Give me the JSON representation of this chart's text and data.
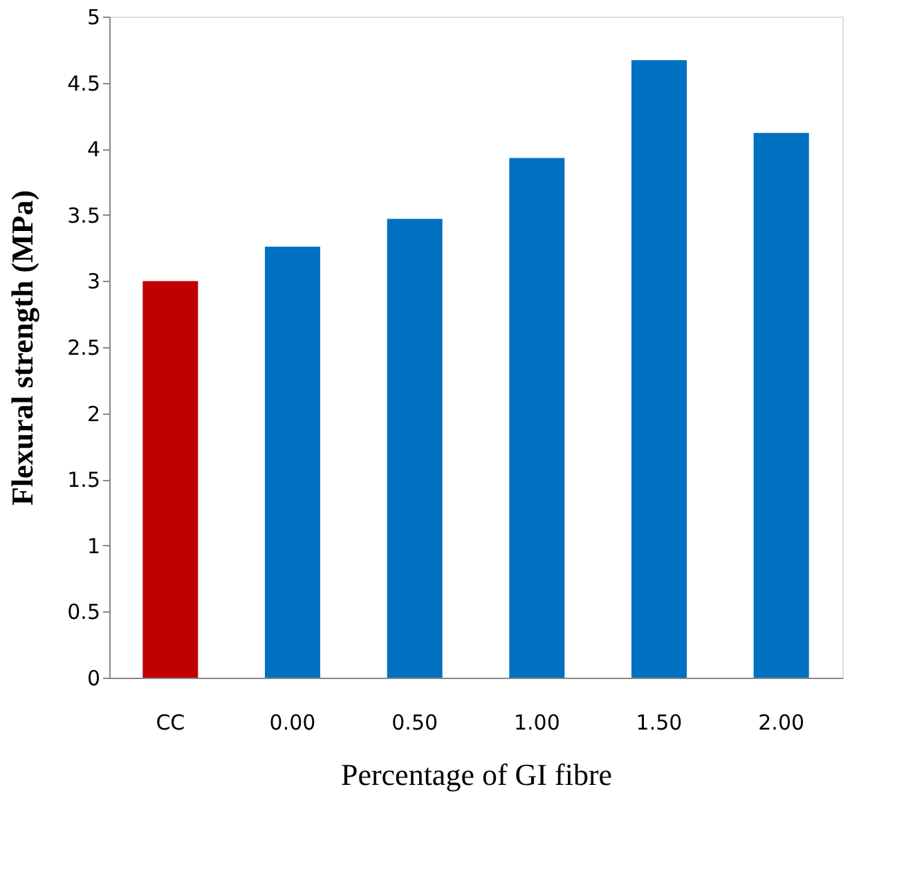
{
  "chart_data": {
    "type": "bar",
    "xlabel": "Percentage of GI fibre",
    "ylabel": "Flexural strength (MPa)",
    "categories": [
      "CC",
      "0.00",
      "0.50",
      "1.00",
      "1.50",
      "2.00"
    ],
    "values": [
      3.0,
      3.26,
      3.47,
      3.93,
      4.67,
      4.12
    ],
    "colors": [
      "#c00000",
      "#0070c0",
      "#0070c0",
      "#0070c0",
      "#0070c0",
      "#0070c0"
    ],
    "ylim": [
      0,
      5
    ],
    "yticks": [
      0,
      0.5,
      1,
      1.5,
      2,
      2.5,
      3,
      3.5,
      4,
      4.5,
      5
    ],
    "grid": false
  }
}
